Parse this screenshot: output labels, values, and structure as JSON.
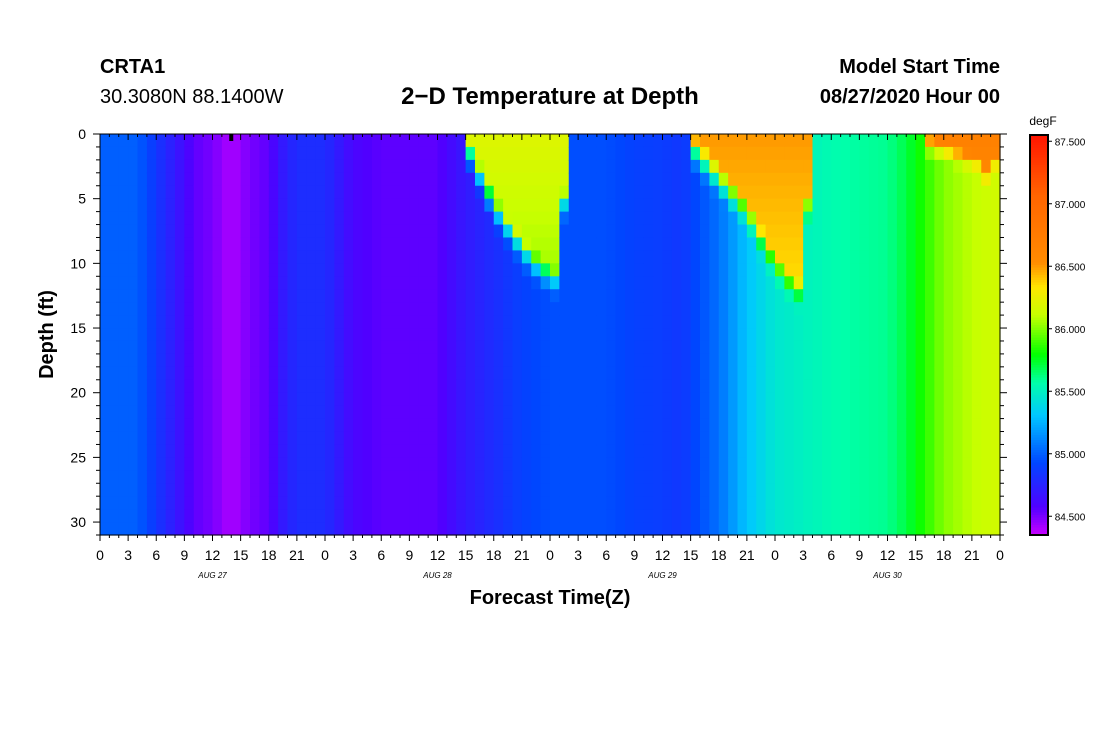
{
  "header": {
    "station": "CRTA1",
    "coords": "30.3080N 88.1400W",
    "title": "2−D Temperature at Depth",
    "model_start_label": "Model Start Time",
    "model_start_value": "08/27/2020 Hour 00"
  },
  "chart_data": {
    "type": "heatmap",
    "title": "2−D Temperature at Depth",
    "xlabel": "Forecast Time(Z)",
    "ylabel": "Depth (ft)",
    "x_range_hours": [
      0,
      96
    ],
    "x_tick_step_hours": 3,
    "x_tick_labels": [
      "0",
      "3",
      "6",
      "9",
      "12",
      "15",
      "18",
      "21",
      "0",
      "3",
      "6",
      "9",
      "12",
      "15",
      "18",
      "21",
      "0",
      "3",
      "6",
      "9",
      "12",
      "15",
      "18",
      "21",
      "0",
      "3",
      "6",
      "9",
      "12",
      "15",
      "18",
      "21",
      "0"
    ],
    "day_labels": [
      {
        "hour": 12,
        "label": "AUG 27"
      },
      {
        "hour": 36,
        "label": "AUG 28"
      },
      {
        "hour": 60,
        "label": "AUG 29"
      },
      {
        "hour": 84,
        "label": "AUG 30"
      }
    ],
    "ylim": [
      0,
      31
    ],
    "y_ticks": [
      0,
      5,
      10,
      15,
      20,
      25,
      30
    ],
    "colorbar": {
      "unit": "degF",
      "vmin": 84.35,
      "vmax": 87.55,
      "ticks": [
        "87.500",
        "87.000",
        "86.500",
        "86.000",
        "85.500",
        "85.000",
        "84.500"
      ],
      "tick_values": [
        87.5,
        87.0,
        86.5,
        86.0,
        85.5,
        85.0,
        84.5
      ]
    },
    "bottom_temperature_profile": {
      "hours": [
        0,
        4,
        6,
        8,
        10,
        12,
        14,
        16,
        18,
        19.5,
        21,
        24,
        27,
        30,
        33,
        36,
        38,
        39,
        42,
        45,
        48,
        51,
        54,
        57,
        60,
        62,
        63,
        66,
        69,
        72,
        75,
        78,
        81,
        84,
        86,
        88,
        90,
        93,
        96
      ],
      "temps_degF": [
        85.0,
        85.0,
        84.85,
        84.7,
        84.55,
        84.5,
        84.4,
        84.5,
        84.55,
        84.7,
        84.8,
        84.8,
        84.6,
        84.55,
        84.55,
        84.55,
        84.65,
        84.7,
        84.8,
        84.9,
        84.95,
        84.95,
        84.95,
        84.9,
        84.88,
        84.85,
        84.9,
        85.05,
        85.3,
        85.45,
        85.5,
        85.55,
        85.58,
        85.6,
        85.7,
        85.85,
        86.0,
        86.1,
        86.15
      ]
    },
    "surface_warm_pulses": [
      {
        "onset_hour": 39,
        "peak_hour": 42,
        "end_hour": 50,
        "max_depth_ft": 10.5,
        "peak_temp_degF": 86.2
      },
      {
        "onset_hour": 63,
        "peak_hour": 69,
        "end_hour": 76,
        "max_depth_ft": 11.5,
        "peak_temp_degF": 86.5
      },
      {
        "onset_hour": 88,
        "peak_hour": 94,
        "end_hour": 96,
        "max_depth_ft": 4,
        "peak_temp_degF": 86.7
      }
    ]
  }
}
